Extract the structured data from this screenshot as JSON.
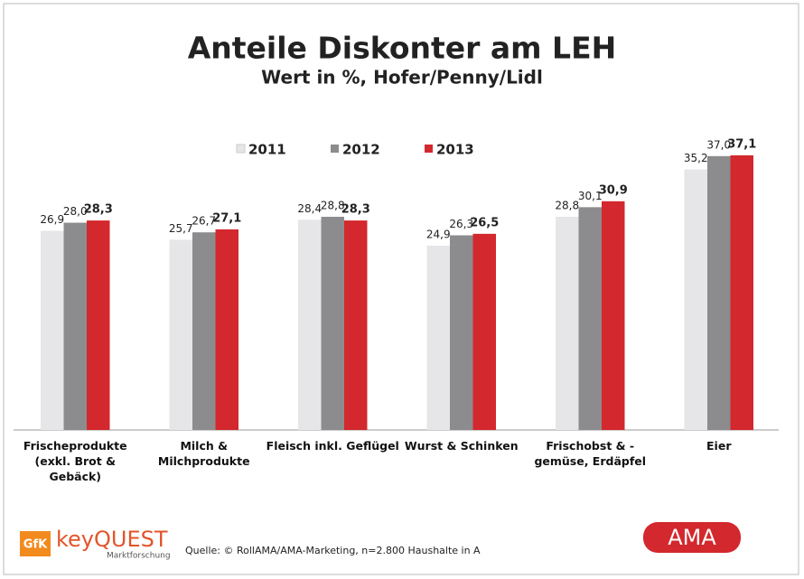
{
  "chart_data": {
    "type": "bar",
    "title": "Anteile Diskonter am LEH",
    "subtitle": "Wert in %, Hofer/Penny/Lidl",
    "categories": [
      "Frischeprodukte\n(exkl. Brot &\nGebäck)",
      "Milch &\nMilchprodukte",
      "Fleisch inkl. Geflügel",
      "Wurst & Schinken",
      "Frischobst & -\ngemüse, Erdäpfel",
      "Eier"
    ],
    "series": [
      {
        "name": "2011",
        "color": "#e6e6e9",
        "values": [
          26.9,
          25.7,
          28.4,
          24.9,
          28.8,
          35.2
        ],
        "value_labels": [
          "26,9",
          "25,7",
          "28,4",
          "24,9",
          "28,8",
          "35,2"
        ]
      },
      {
        "name": "2012",
        "color": "#8c8c8e",
        "values": [
          28.0,
          26.7,
          28.8,
          26.3,
          30.1,
          37.0
        ],
        "value_labels": [
          "28,0",
          "26,7",
          "28,8",
          "26,3",
          "30,1",
          "37,0"
        ]
      },
      {
        "name": "2013",
        "color": "#d3282d",
        "values": [
          28.3,
          27.1,
          28.3,
          26.5,
          30.9,
          37.1
        ],
        "value_labels": [
          "28,3",
          "27,1",
          "28,3",
          "26,5",
          "30,9",
          "37,1"
        ]
      }
    ],
    "source": "Quelle: © RollAMA/AMA-Marketing, n=2.800 Haushalte in A",
    "logo_left": {
      "badge": "GfK",
      "name": "keyQUEST",
      "tagline": "Marktforschung"
    },
    "logo_right": "AMA"
  }
}
